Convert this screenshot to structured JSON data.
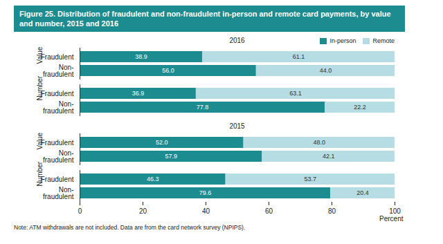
{
  "title": "Figure 25. Distribution of fraudulent and non-fraudulent in-person and remote card payments, by value and number, 2015 and 2016",
  "note": "Note: ATM withdrawals are not included. Data are from the card network survey (NPIPS).",
  "chart_data": [
    {
      "type": "bar",
      "title": "2016",
      "orientation": "horizontal",
      "stacked": true,
      "data_labels": true,
      "categories": [
        "Fraudulent",
        "Non-fraudulent",
        "Fraudulent",
        "Non-fraudulent"
      ],
      "groups": [
        "Value",
        "Value",
        "Number",
        "Number"
      ],
      "series": [
        {
          "name": "In-person",
          "color": "#1d8c90",
          "values": [
            38.9,
            56.0,
            36.9,
            77.8
          ],
          "value_labels": [
            "38.9",
            "56.0",
            "36.9",
            "77.8"
          ]
        },
        {
          "name": "Remote",
          "color": "#b5dde3",
          "values": [
            61.1,
            44.0,
            63.1,
            22.2
          ],
          "value_labels": [
            "61.1",
            "44.0",
            "63.1",
            "22.2"
          ]
        }
      ],
      "xlim": [
        0,
        100
      ],
      "tick_labels": "y",
      "legend": "top-right"
    },
    {
      "type": "bar",
      "title": "2015",
      "orientation": "horizontal",
      "stacked": true,
      "data_labels": true,
      "categories": [
        "Fraudulent",
        "Non-fraudulent",
        "Fraudulent",
        "Non-fraudulent"
      ],
      "groups": [
        "Value",
        "Value",
        "Number",
        "Number"
      ],
      "series": [
        {
          "name": "In-person",
          "color": "#1d8c90",
          "values": [
            52.0,
            57.9,
            46.3,
            79.6
          ],
          "value_labels": [
            "52.0",
            "57.9",
            "46.3",
            "79.6"
          ]
        },
        {
          "name": "Remote",
          "color": "#b5dde3",
          "values": [
            48.0,
            42.1,
            53.7,
            20.4
          ],
          "value_labels": [
            "48.0",
            "42.1",
            "53.7",
            "20.4"
          ]
        }
      ],
      "xlim": [
        0,
        100
      ],
      "xticks": [
        0,
        20,
        40,
        60,
        80,
        100
      ],
      "x_label": "Percent"
    }
  ]
}
